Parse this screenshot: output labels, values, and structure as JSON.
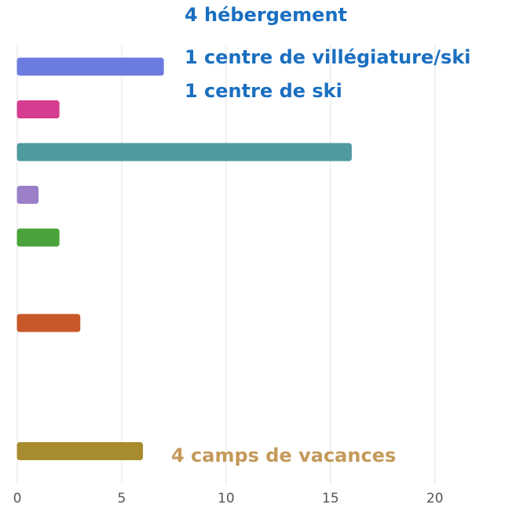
{
  "chart_data": {
    "type": "hbar",
    "categories": [
      null,
      null,
      null,
      null,
      null,
      null,
      null,
      null,
      null,
      null
    ],
    "values": [
      7,
      2,
      16,
      1,
      2,
      0,
      3,
      0,
      0,
      6
    ],
    "colors": [
      "#6b7be0",
      "#d63c8f",
      "#4e9a9f",
      "#9b7fc8",
      "#4aa33a",
      "#5aa8d8",
      "#c8582a",
      "#7a8a3a",
      "#c070c0",
      "#a88b2e"
    ],
    "xlim": [
      0,
      22
    ],
    "xticks": [
      0,
      5,
      10,
      15,
      20
    ],
    "grid": true,
    "annotations": [
      {
        "text": "4 hébergement",
        "color": "#1a6fc0"
      },
      {
        "text": "1 centre de villégiature/ski",
        "color": "#1a6fc0"
      },
      {
        "text": "1 centre de ski",
        "color": "#1a6fc0"
      },
      {
        "text": "4 camps de vacances",
        "color": "#c49a5a"
      }
    ]
  }
}
